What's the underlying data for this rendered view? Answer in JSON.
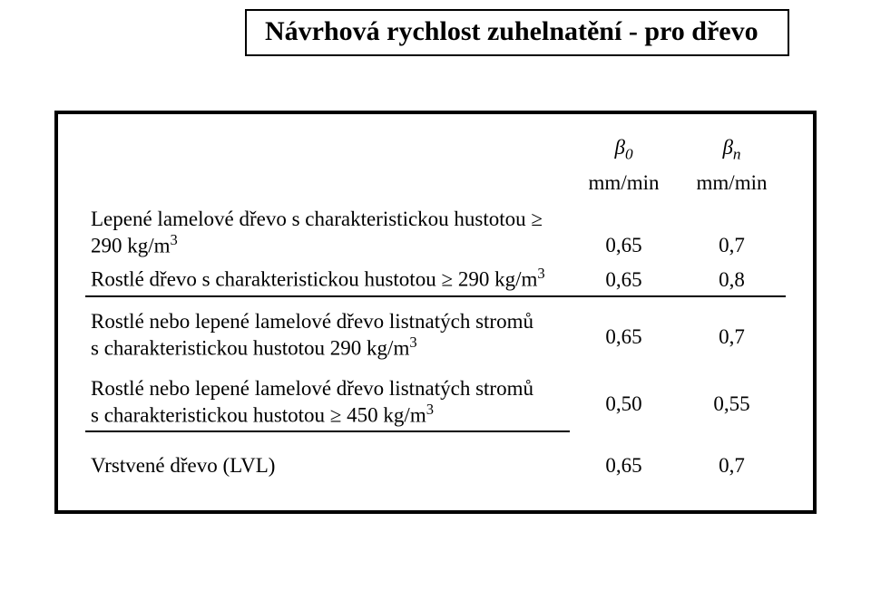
{
  "title": "Návrhová rychlost zuhelnatění - pro dřevo",
  "symbols": {
    "b0": "β",
    "b0_sub": "0",
    "bn": "β",
    "bn_sub": "n"
  },
  "units": {
    "col1": "mm/min",
    "col2": "mm/min"
  },
  "rows": {
    "r1": {
      "label_a": "Lepené lamelové dřevo s charakteristickou hustotou ≥ 290 kg/m",
      "v1": "0,65",
      "v2": "0,7"
    },
    "r2": {
      "label_a": "Rostlé dřevo s charakteristickou hustotou ≥ 290 kg/m",
      "v1": "0,65",
      "v2": "0,8"
    },
    "r3": {
      "label_a": "Rostlé nebo lepené lamelové dřevo listnatých stromů",
      "label_b": "s charakteristickou hustotou 290 kg/m",
      "v1": "0,65",
      "v2": "0,7"
    },
    "r4": {
      "label_a": "Rostlé nebo lepené lamelové dřevo listnatých stromů",
      "label_b": "s charakteristickou hustotou ≥ 450 kg/m",
      "v1": "0,50",
      "v2": "0,55"
    },
    "r5": {
      "label_a": "Vrstvené dřevo (LVL)",
      "v1": "0,65",
      "v2": "0,7"
    }
  },
  "exp3": "3"
}
